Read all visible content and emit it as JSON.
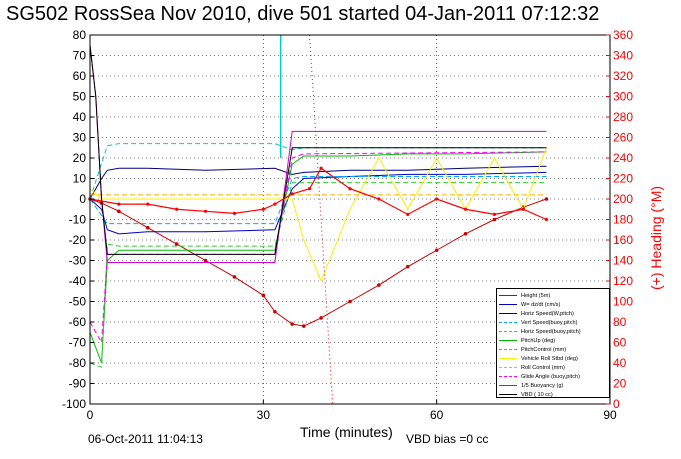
{
  "title": "SG502 RossSea Nov 2010, dive 501 started 04-Jan-2011 07:12:32",
  "footer": {
    "date": "06-Oct-2011 11:04:13",
    "vbd_bias": "VBD bias =0 cc"
  },
  "chart_data": {
    "type": "line",
    "xlabel": "Time (minutes)",
    "ylabel_right": "(+) Heading (°M)",
    "xlim": [
      0,
      90
    ],
    "ylim": [
      -100,
      80
    ],
    "ylim_right": [
      0,
      360
    ],
    "xticks": [
      0,
      30,
      60,
      90
    ],
    "yticks": [
      -100,
      -90,
      -80,
      -70,
      -60,
      -50,
      -40,
      -30,
      -20,
      -10,
      0,
      10,
      20,
      30,
      40,
      50,
      60,
      70,
      80
    ],
    "yticks_right": [
      0,
      20,
      40,
      60,
      80,
      100,
      120,
      140,
      160,
      180,
      200,
      220,
      240,
      260,
      280,
      300,
      320,
      340,
      360
    ],
    "grid": true,
    "legend_position": "bottom-right",
    "series": [
      {
        "name": "Height (5m)",
        "color": "#cc0000",
        "style": "solid",
        "marker": "dot",
        "x": [
          0,
          2,
          5,
          10,
          15,
          20,
          25,
          30,
          32,
          35,
          37,
          40,
          45,
          50,
          55,
          60,
          65,
          70,
          75,
          79
        ],
        "y": [
          0,
          -2,
          -6,
          -14,
          -22,
          -30,
          -38,
          -47,
          -55,
          -61,
          -62,
          -58,
          -50,
          -42,
          -33,
          -25,
          -17,
          -10,
          -4,
          0
        ]
      },
      {
        "name": "W= dz/dt (cm/s)",
        "color": "#0000cc",
        "style": "solid",
        "x": [
          0,
          2,
          3,
          5,
          10,
          20,
          32,
          35,
          37,
          45,
          55,
          65,
          79
        ],
        "y": [
          0,
          -5,
          -15,
          -17,
          -16,
          -16,
          -15,
          5,
          10,
          11,
          12,
          12,
          13
        ]
      },
      {
        "name": "Horiz Speed(W,pitch)",
        "color": "#000080",
        "style": "solid",
        "x": [
          0,
          2,
          3,
          5,
          10,
          20,
          32,
          35,
          37,
          45,
          55,
          65,
          79
        ],
        "y": [
          0,
          10,
          14,
          15,
          15,
          14,
          15,
          12,
          13,
          14,
          14,
          15,
          16
        ]
      },
      {
        "name": "Vert Speed(buoy,pitch)",
        "color": "#00aaff",
        "style": "dashed",
        "x": [
          0,
          3,
          5,
          32,
          35,
          37,
          79
        ],
        "y": [
          0,
          -12,
          -12,
          -12,
          10,
          11,
          11
        ]
      },
      {
        "name": "Horiz Speed(buoy,pitch)",
        "color": "#00cccc",
        "style": "dashed",
        "x": [
          0,
          3,
          5,
          32,
          35,
          37,
          79
        ],
        "y": [
          0,
          26,
          27,
          27,
          24,
          25,
          25
        ]
      },
      {
        "name": "PitchUp (deg)",
        "color": "#00bb00",
        "style": "solid",
        "x": [
          0,
          2,
          3,
          5,
          10,
          20,
          32,
          35,
          37,
          45,
          55,
          65,
          79
        ],
        "y": [
          -65,
          -80,
          -30,
          -25,
          -25,
          -25,
          -25,
          17,
          21,
          21,
          22,
          22,
          23
        ]
      },
      {
        "name": "PitchControl (mm)",
        "color": "#33cc33",
        "style": "dashed",
        "x": [
          0,
          2,
          3,
          5,
          32,
          35,
          37,
          79
        ],
        "y": [
          -80,
          -82,
          -22,
          -23,
          -23,
          8,
          8,
          8
        ]
      },
      {
        "name": "Vehicle Roll Stbd (deg)",
        "color": "#ffee00",
        "style": "solid",
        "x": [
          0,
          2,
          5,
          10,
          15,
          20,
          25,
          30,
          32,
          35,
          37,
          40,
          45,
          50,
          55,
          60,
          65,
          70,
          75,
          79
        ],
        "y": [
          5,
          0,
          0,
          0,
          0,
          0,
          0,
          0,
          0,
          0,
          -20,
          -40,
          -5,
          20,
          -5,
          20,
          -5,
          20,
          -5,
          25
        ]
      },
      {
        "name": "Roll Control (mm)",
        "color": "#ffb000",
        "style": "dashed",
        "x": [
          0,
          5,
          35,
          40,
          79
        ],
        "y": [
          2,
          2,
          2,
          2,
          2
        ]
      },
      {
        "name": "Glide Angle (buoy,pitch)",
        "color": "#ff00ff",
        "style": "dashed",
        "x": [
          0,
          2,
          3,
          5,
          32,
          35,
          37,
          79
        ],
        "y": [
          -60,
          -70,
          -27,
          -27,
          -27,
          20,
          22,
          23
        ]
      },
      {
        "name": "1/5 Buoyancy (g)",
        "color": "#cc00cc",
        "style": "solid",
        "x": [
          0,
          1,
          2,
          3,
          5,
          32,
          35,
          37,
          79
        ],
        "y": [
          75,
          50,
          0,
          -31,
          -31,
          -31,
          33,
          33,
          33
        ]
      },
      {
        "name": "VBD ( 10 cc)",
        "color": "#000000",
        "style": "solid",
        "x": [
          0,
          1,
          2,
          3,
          5,
          32,
          35,
          37,
          79
        ],
        "y": [
          75,
          50,
          0,
          -27,
          -27,
          -27,
          25,
          25,
          25
        ]
      }
    ],
    "heading": {
      "name": "(+) Heading (°M)",
      "color": "#ff0000",
      "style": "dotted",
      "axis": "right",
      "x": [
        0,
        5,
        10,
        15,
        20,
        25,
        30,
        32,
        35,
        38,
        40,
        45,
        50,
        55,
        60,
        65,
        70,
        75,
        79
      ],
      "y": [
        200,
        195,
        195,
        190,
        188,
        186,
        190,
        195,
        205,
        210,
        230,
        210,
        200,
        185,
        200,
        190,
        185,
        190,
        180
      ]
    },
    "vertical_spikes": [
      {
        "color": "#00cccc",
        "x": 33,
        "y": [
          20,
          80
        ]
      },
      {
        "color": "#ff0000",
        "x": [
          38,
          42
        ],
        "y": [
          360,
          0
        ],
        "axis": "right"
      }
    ]
  }
}
